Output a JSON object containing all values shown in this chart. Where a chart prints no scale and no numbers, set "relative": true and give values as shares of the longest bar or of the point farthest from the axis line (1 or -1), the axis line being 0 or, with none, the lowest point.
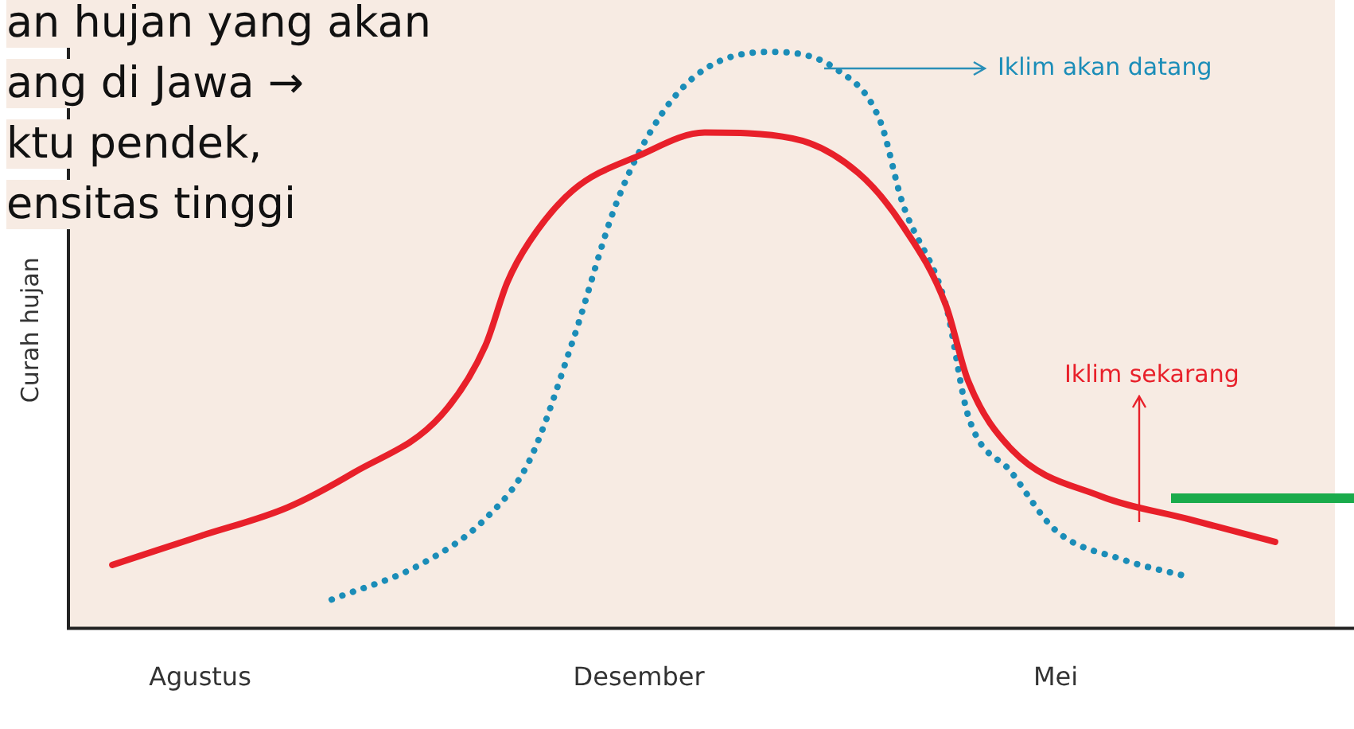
{
  "chart_data": {
    "type": "line",
    "relative": true,
    "ylabel": "Curah hujan",
    "annotations": [
      "an hujan yang akan",
      "ang di Jawa →",
      "ktu pendek,",
      "ensitas tinggi"
    ],
    "categories": [
      null,
      null,
      null,
      null,
      null,
      null,
      "Agustus",
      null,
      null,
      null,
      null,
      null,
      null,
      null,
      null,
      null,
      null,
      null,
      null,
      null,
      null,
      null,
      null,
      null,
      null,
      null,
      "Desember",
      null,
      null,
      null,
      null,
      null,
      null,
      null,
      null,
      null,
      null,
      null,
      null,
      null,
      null,
      null,
      null,
      null,
      null,
      "Mei",
      null,
      null,
      null,
      null,
      null,
      null,
      null,
      null,
      null,
      null,
      null,
      null
    ],
    "series": [
      {
        "name": "Iklim sekarang",
        "color": "#e8202a",
        "line_style": "solid",
        "values": [
          null,
          null,
          0.11,
          null,
          null,
          null,
          0.16,
          null,
          null,
          null,
          0.21,
          null,
          null,
          0.27,
          null,
          null,
          null,
          0.37,
          null,
          0.49,
          0.6,
          0.67,
          null,
          0.76,
          null,
          null,
          0.82,
          null,
          null,
          0.86,
          null,
          null,
          null,
          0.85,
          null,
          null,
          0.79,
          null,
          0.7,
          null,
          0.56,
          0.43,
          null,
          0.31,
          null,
          null,
          null,
          0.23,
          null,
          null,
          null,
          0.19,
          null,
          null,
          null,
          0.15,
          null,
          null
        ]
      },
      {
        "name": "Iklim akan datang",
        "color": "#1b8db8",
        "line_style": "dotted",
        "values": [
          null,
          null,
          null,
          null,
          null,
          null,
          null,
          null,
          null,
          null,
          null,
          null,
          0.05,
          null,
          null,
          null,
          0.11,
          null,
          null,
          0.19,
          null,
          0.29,
          null,
          0.5,
          null,
          0.74,
          null,
          0.89,
          null,
          0.97,
          null,
          null,
          1.0,
          null,
          null,
          0.97,
          null,
          0.88,
          0.74,
          null,
          0.56,
          0.37,
          null,
          0.27,
          null,
          0.17,
          null,
          null,
          0.12,
          null,
          null,
          0.09,
          null,
          null,
          null,
          null,
          null,
          null
        ]
      }
    ],
    "legend": "top right",
    "grid": false
  }
}
